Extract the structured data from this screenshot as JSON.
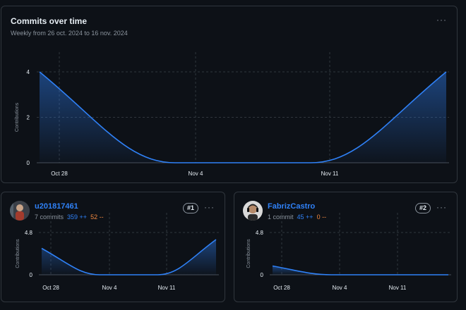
{
  "main": {
    "title": "Commits over time",
    "subtitle": "Weekly from 26 oct. 2024 to 16 nov. 2024",
    "more_label": "···"
  },
  "contributors": [
    {
      "username": "u201817461",
      "commits": "7 commits",
      "additions": "359 ++",
      "deletions": "52 --",
      "rank": "#1",
      "more_label": "···"
    },
    {
      "username": "FabrizCastro",
      "commits": "1 commit",
      "additions": "45 ++",
      "deletions": "0 --",
      "rank": "#2",
      "more_label": "···"
    }
  ],
  "colors": {
    "accent": "#2f81f7",
    "background": "#0d1117",
    "border": "#30363d",
    "muted": "#8b949e",
    "additions": "#3fb950",
    "deletions": "#f0883e"
  },
  "chart_data": [
    {
      "type": "area",
      "x": [
        "2024-10-26",
        "2024-11-02",
        "2024-11-09",
        "2024-11-16"
      ],
      "x_ticks": [
        "Oct 28",
        "Nov 4",
        "Nov 11"
      ],
      "values": [
        4,
        0,
        0,
        4
      ],
      "ylabel": "Contributions",
      "y_ticks": [
        "0",
        "2",
        "4"
      ],
      "ylim": [
        0,
        4
      ],
      "grid": true
    },
    {
      "type": "area",
      "x": [
        "2024-10-26",
        "2024-11-02",
        "2024-11-09",
        "2024-11-16"
      ],
      "x_ticks": [
        "Oct 28",
        "Nov 4",
        "Nov 11"
      ],
      "values": [
        3,
        0,
        0,
        4
      ],
      "ylabel": "Contributions",
      "y_ticks": [
        "0",
        "4.8"
      ],
      "ylim": [
        0,
        4.8
      ],
      "grid": true
    },
    {
      "type": "area",
      "x": [
        "2024-10-26",
        "2024-11-02",
        "2024-11-09",
        "2024-11-16"
      ],
      "x_ticks": [
        "Oct 28",
        "Nov 4",
        "Nov 11"
      ],
      "values": [
        1,
        0,
        0,
        0
      ],
      "ylabel": "Contributions",
      "y_ticks": [
        "0",
        "4.8"
      ],
      "ylim": [
        0,
        4.8
      ],
      "grid": true
    }
  ]
}
